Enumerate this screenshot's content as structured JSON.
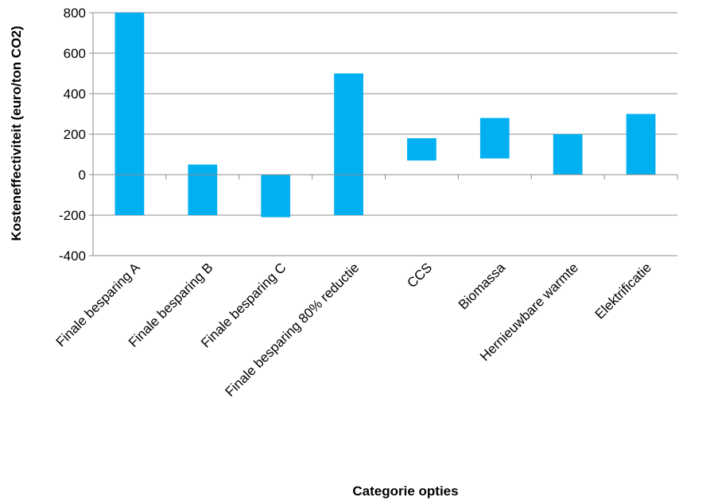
{
  "chart_data": {
    "type": "bar",
    "subtype": "floating-range",
    "title": "",
    "xlabel": "Categorie opties",
    "ylabel": "Kosteneffectiviteit (euro/ton CO2)",
    "ylim": [
      -400,
      800
    ],
    "yticks": [
      -400,
      -200,
      0,
      200,
      400,
      600,
      800
    ],
    "grid": "horizontal",
    "legend": "none",
    "bar_color": "#00B0F0",
    "categories": [
      "Finale besparing A",
      "Finale besparing B",
      "Finale besparing C",
      "Finale besparing 80% reductie",
      "CCS",
      "Biomassa",
      "Hernieuwbare warmte",
      "Elektrificatie"
    ],
    "series": [
      {
        "low": [
          -200,
          -200,
          -210,
          -200,
          70,
          80,
          0,
          0
        ],
        "high": [
          800,
          50,
          0,
          500,
          180,
          280,
          200,
          300
        ]
      }
    ]
  }
}
